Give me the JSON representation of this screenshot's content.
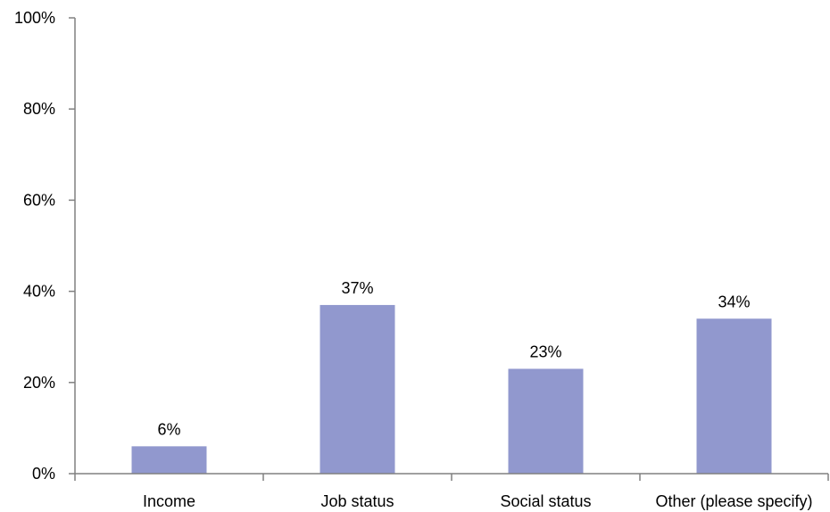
{
  "chart_data": {
    "type": "bar",
    "title": "",
    "xlabel": "",
    "ylabel": "",
    "categories": [
      "Income",
      "Job status",
      "Social status",
      "Other (please specify)"
    ],
    "values": [
      6,
      37,
      23,
      34
    ],
    "value_unit": "%",
    "data_labels": [
      "6%",
      "37%",
      "23%",
      "34%"
    ],
    "ylim": [
      0,
      100
    ],
    "yticks": [
      0,
      20,
      40,
      60,
      80,
      100
    ],
    "ytick_labels": [
      "0%",
      "20%",
      "40%",
      "60%",
      "80%",
      "100%"
    ],
    "grid": false,
    "legend": "none",
    "bar_color": "#9198CE",
    "axis_color": "#808080"
  }
}
